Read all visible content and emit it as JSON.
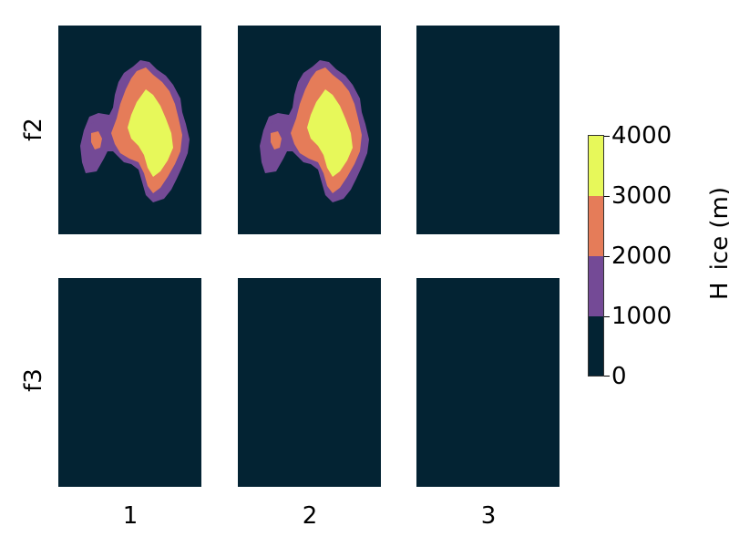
{
  "chart_data": {
    "type": "heatmap",
    "description_rows": [
      "f2",
      "f3"
    ],
    "description_cols": [
      "1",
      "2",
      "3"
    ],
    "rows": [
      "f2",
      "f3"
    ],
    "cols": [
      "1",
      "2",
      "3"
    ],
    "panels": [
      {
        "row": "f2",
        "col": "1",
        "has_ice": true
      },
      {
        "row": "f2",
        "col": "2",
        "has_ice": true
      },
      {
        "row": "f2",
        "col": "3",
        "has_ice": false
      },
      {
        "row": "f3",
        "col": "1",
        "has_ice": false
      },
      {
        "row": "f3",
        "col": "2",
        "has_ice": false
      },
      {
        "row": "f3",
        "col": "3",
        "has_ice": false
      }
    ],
    "colorbar": {
      "label": "H_ice (m)",
      "ticks": [
        "0",
        "1000",
        "2000",
        "3000",
        "4000"
      ],
      "levels": [
        {
          "min": 0,
          "max": 1000,
          "color": "#032333"
        },
        {
          "min": 1000,
          "max": 2000,
          "color": "#744a96"
        },
        {
          "min": 2000,
          "max": 3000,
          "color": "#e57c59"
        },
        {
          "min": 3000,
          "max": 4000,
          "color": "#e7f85a"
        }
      ]
    }
  }
}
